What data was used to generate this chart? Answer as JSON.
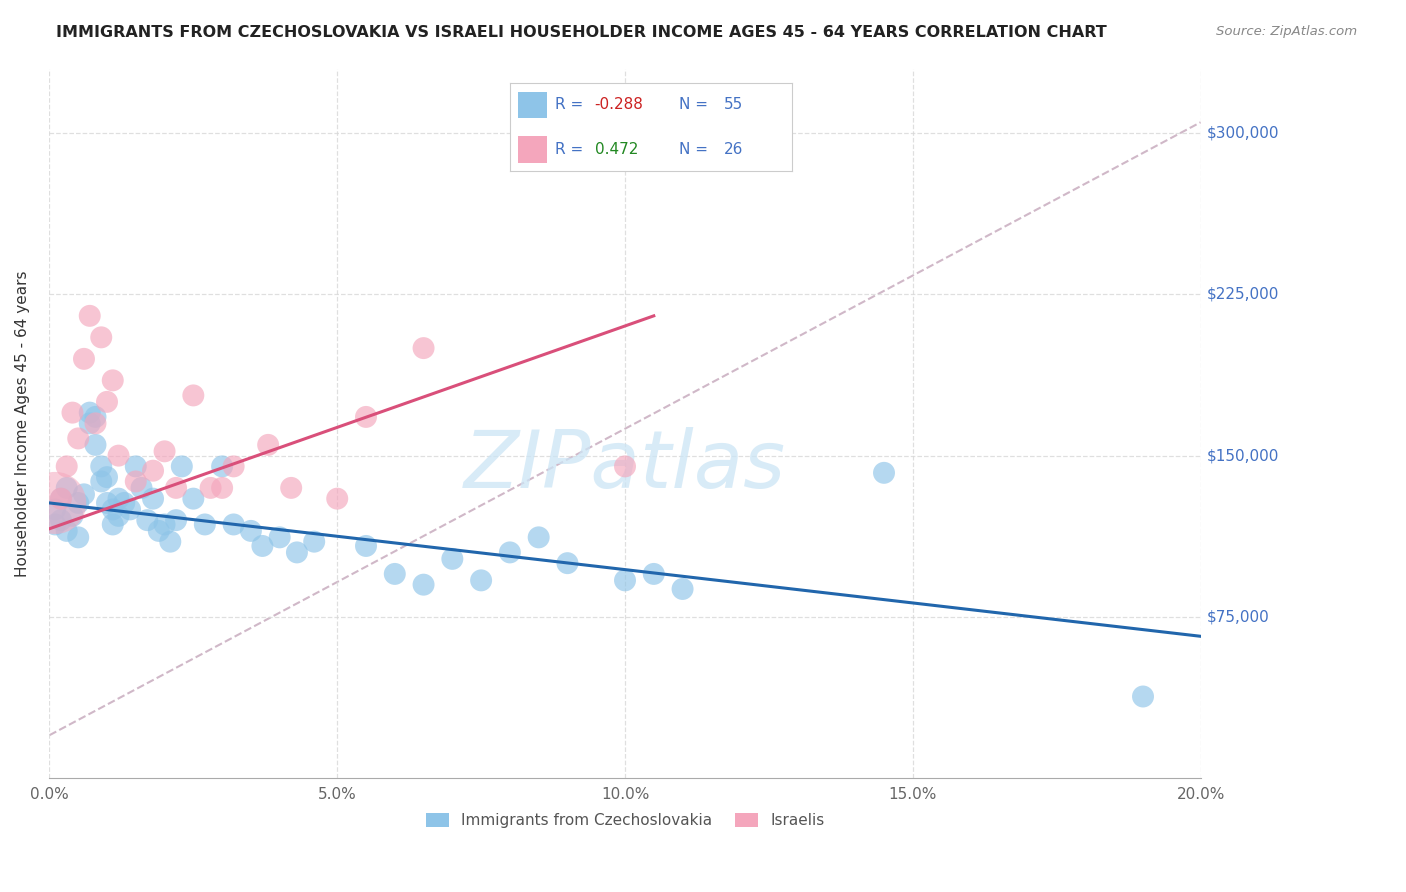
{
  "title": "IMMIGRANTS FROM CZECHOSLOVAKIA VS ISRAELI HOUSEHOLDER INCOME AGES 45 - 64 YEARS CORRELATION CHART",
  "source": "Source: ZipAtlas.com",
  "ylabel": "Householder Income Ages 45 - 64 years",
  "x_min": 0.0,
  "x_max": 0.2,
  "y_min": 0,
  "y_max": 330000,
  "y_ticks": [
    75000,
    150000,
    225000,
    300000
  ],
  "y_tick_labels": [
    "$75,000",
    "$150,000",
    "$225,000",
    "$300,000"
  ],
  "x_ticks": [
    0.0,
    0.05,
    0.1,
    0.15,
    0.2
  ],
  "x_tick_labels": [
    "0.0%",
    "5.0%",
    "10.0%",
    "15.0%",
    "20.0%"
  ],
  "legend_labels": [
    "Immigrants from Czechoslovakia",
    "Israelis"
  ],
  "r_blue": -0.288,
  "n_blue": 55,
  "r_pink": 0.472,
  "n_pink": 26,
  "blue_color": "#8ec4e8",
  "pink_color": "#f4a6bc",
  "blue_line_color": "#2166ac",
  "pink_line_color": "#d94f7a",
  "dashed_line_color": "#d0b8c8",
  "background_color": "#ffffff",
  "grid_color": "#d8d8d8",
  "blue_trend_x": [
    0.0,
    0.2
  ],
  "blue_trend_y": [
    128000,
    66000
  ],
  "pink_trend_x": [
    0.0,
    0.105
  ],
  "pink_trend_y": [
    116000,
    215000
  ],
  "dashed_line_x": [
    0.0,
    0.2
  ],
  "dashed_line_y": [
    20000,
    305000
  ],
  "blue_scatter_x": [
    0.001,
    0.001,
    0.002,
    0.002,
    0.003,
    0.003,
    0.004,
    0.005,
    0.005,
    0.006,
    0.007,
    0.007,
    0.008,
    0.008,
    0.009,
    0.009,
    0.01,
    0.01,
    0.011,
    0.011,
    0.012,
    0.012,
    0.013,
    0.014,
    0.015,
    0.016,
    0.017,
    0.018,
    0.019,
    0.02,
    0.021,
    0.022,
    0.023,
    0.025,
    0.027,
    0.03,
    0.032,
    0.035,
    0.037,
    0.04,
    0.043,
    0.046,
    0.055,
    0.06,
    0.065,
    0.07,
    0.075,
    0.08,
    0.085,
    0.09,
    0.1,
    0.105,
    0.11,
    0.145,
    0.19
  ],
  "blue_scatter_y": [
    125000,
    118000,
    130000,
    120000,
    135000,
    115000,
    122000,
    128000,
    112000,
    132000,
    165000,
    170000,
    155000,
    168000,
    145000,
    138000,
    140000,
    128000,
    125000,
    118000,
    130000,
    122000,
    128000,
    125000,
    145000,
    135000,
    120000,
    130000,
    115000,
    118000,
    110000,
    120000,
    145000,
    130000,
    118000,
    145000,
    118000,
    115000,
    108000,
    112000,
    105000,
    110000,
    108000,
    95000,
    90000,
    102000,
    92000,
    105000,
    112000,
    100000,
    92000,
    95000,
    88000,
    142000,
    38000
  ],
  "pink_scatter_x": [
    0.001,
    0.002,
    0.003,
    0.004,
    0.005,
    0.006,
    0.007,
    0.008,
    0.009,
    0.01,
    0.011,
    0.012,
    0.015,
    0.018,
    0.02,
    0.022,
    0.025,
    0.028,
    0.03,
    0.032,
    0.038,
    0.042,
    0.05,
    0.055,
    0.065,
    0.1
  ],
  "pink_scatter_y": [
    128000,
    130000,
    145000,
    170000,
    158000,
    195000,
    215000,
    165000,
    205000,
    175000,
    185000,
    150000,
    138000,
    143000,
    152000,
    135000,
    178000,
    135000,
    135000,
    145000,
    155000,
    135000,
    130000,
    168000,
    200000,
    145000
  ],
  "pink_scatter_large_idx": 0,
  "pink_scatter_large_size": 2000,
  "default_scatter_size": 250
}
